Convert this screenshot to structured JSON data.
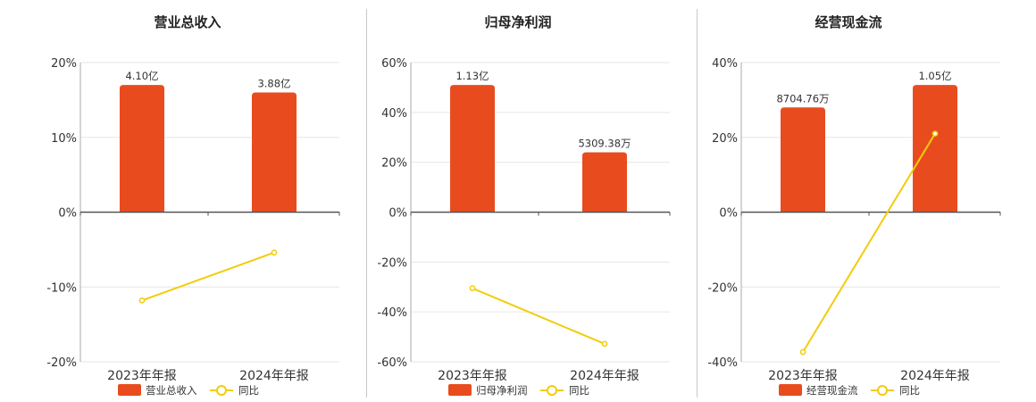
{
  "colors": {
    "bar": "#e84c1e",
    "line": "#f2cc0c",
    "grid": "#e6e6e6",
    "axis": "#555555"
  },
  "legend": {
    "line_label": "同比"
  },
  "chart_data": [
    {
      "type": "bar",
      "title": "营业总收入",
      "categories": [
        "2023年年报",
        "2024年年报"
      ],
      "series": [
        {
          "name": "营业总收入",
          "type": "bar",
          "values": [
            17,
            16
          ],
          "labels": [
            "4.10亿",
            "3.88亿"
          ]
        },
        {
          "name": "同比",
          "type": "line",
          "values": [
            -11.8,
            -5.4
          ]
        }
      ],
      "ylim": [
        -20,
        20
      ],
      "yticks": [
        20,
        10,
        0,
        -10,
        -20
      ],
      "ytick_labels": [
        "20%",
        "10%",
        "0%",
        "-10%",
        "-20%"
      ],
      "legend_position": "bottom"
    },
    {
      "type": "bar",
      "title": "归母净利润",
      "categories": [
        "2023年年报",
        "2024年年报"
      ],
      "series": [
        {
          "name": "归母净利润",
          "type": "bar",
          "values": [
            51,
            24
          ],
          "labels": [
            "1.13亿",
            "5309.38万"
          ]
        },
        {
          "name": "同比",
          "type": "line",
          "values": [
            -30.5,
            -52.8
          ]
        }
      ],
      "ylim": [
        -60,
        60
      ],
      "yticks": [
        60,
        40,
        20,
        0,
        -20,
        -40,
        -60
      ],
      "ytick_labels": [
        "60%",
        "40%",
        "20%",
        "0%",
        "-20%",
        "-40%",
        "-60%"
      ],
      "legend_position": "bottom"
    },
    {
      "type": "bar",
      "title": "经营现金流",
      "categories": [
        "2023年年报",
        "2024年年报"
      ],
      "series": [
        {
          "name": "经营现金流",
          "type": "bar",
          "values": [
            28,
            34
          ],
          "labels": [
            "8704.76万",
            "1.05亿"
          ]
        },
        {
          "name": "同比",
          "type": "line",
          "values": [
            -37.4,
            21
          ]
        }
      ],
      "ylim": [
        -40,
        40
      ],
      "yticks": [
        40,
        20,
        0,
        -20,
        -40
      ],
      "ytick_labels": [
        "40%",
        "20%",
        "0%",
        "-20%",
        "-40%"
      ],
      "legend_position": "bottom"
    }
  ]
}
